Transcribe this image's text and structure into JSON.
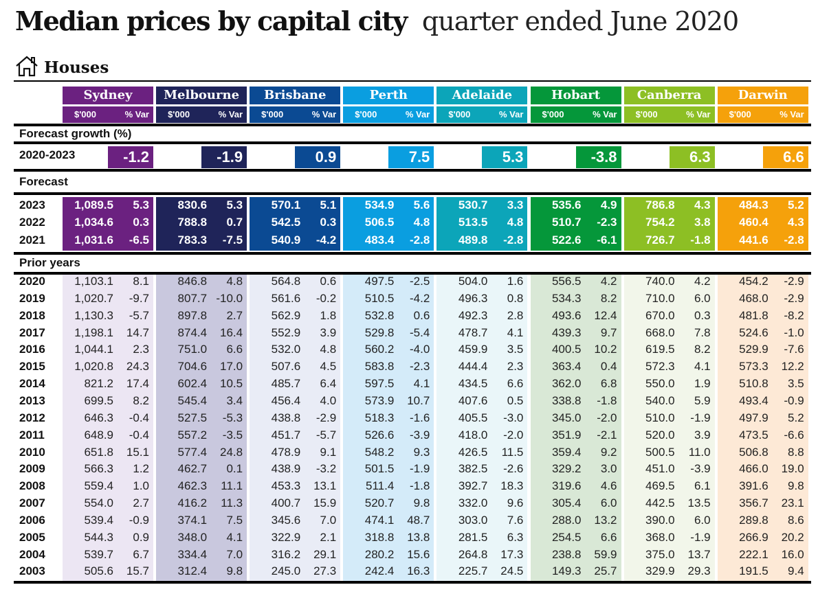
{
  "title": "Median prices by capital city",
  "subtitle": "quarter ended June 2020",
  "section": "Houses",
  "icons": {
    "section_icon": "house-icon"
  },
  "column_labels": {
    "price": "$'000",
    "var": "% Var"
  },
  "cities": [
    {
      "name": "Sydney",
      "color": "#6b2180",
      "tint": "#ece6f3"
    },
    {
      "name": "Melbourne",
      "color": "#1f2459",
      "tint": "#c9c8de"
    },
    {
      "name": "Brisbane",
      "color": "#0b4a93",
      "tint": "#e9ecf6"
    },
    {
      "name": "Perth",
      "color": "#0a9ee0",
      "tint": "#d4ebf9"
    },
    {
      "name": "Adelaide",
      "color": "#0ca5b9",
      "tint": "#eaf6f9"
    },
    {
      "name": "Hobart",
      "color": "#05973a",
      "tint": "#d9e8d6"
    },
    {
      "name": "Canberra",
      "color": "#8dbf24",
      "tint": "#f2f6ea"
    },
    {
      "name": "Darwin",
      "color": "#f5a10b",
      "tint": "#fde9d6"
    }
  ],
  "forecast_growth": {
    "label": "Forecast growth (%)",
    "period": "2020-2023",
    "values": [
      "-1.2",
      "-1.9",
      "0.9",
      "7.5",
      "5.3",
      "-3.8",
      "6.3",
      "6.6"
    ]
  },
  "forecast": {
    "label": "Forecast",
    "rows": [
      {
        "year": "2023",
        "values": [
          [
            "1,089.5",
            "5.3"
          ],
          [
            "830.6",
            "5.3"
          ],
          [
            "570.1",
            "5.1"
          ],
          [
            "534.9",
            "5.6"
          ],
          [
            "530.7",
            "3.3"
          ],
          [
            "535.6",
            "4.9"
          ],
          [
            "786.8",
            "4.3"
          ],
          [
            "484.3",
            "5.2"
          ]
        ]
      },
      {
        "year": "2022",
        "values": [
          [
            "1,034.6",
            "0.3"
          ],
          [
            "788.8",
            "0.7"
          ],
          [
            "542.5",
            "0.3"
          ],
          [
            "506.5",
            "4.8"
          ],
          [
            "513.5",
            "4.8"
          ],
          [
            "510.7",
            "-2.3"
          ],
          [
            "754.2",
            "3.8"
          ],
          [
            "460.4",
            "4.3"
          ]
        ]
      },
      {
        "year": "2021",
        "values": [
          [
            "1,031.6",
            "-6.5"
          ],
          [
            "783.3",
            "-7.5"
          ],
          [
            "540.9",
            "-4.2"
          ],
          [
            "483.4",
            "-2.8"
          ],
          [
            "489.8",
            "-2.8"
          ],
          [
            "522.6",
            "-6.1"
          ],
          [
            "726.7",
            "-1.8"
          ],
          [
            "441.6",
            "-2.8"
          ]
        ]
      }
    ]
  },
  "prior_years": {
    "label": "Prior years",
    "rows": [
      {
        "year": "2020",
        "values": [
          [
            "1,103.1",
            "8.1"
          ],
          [
            "846.8",
            "4.8"
          ],
          [
            "564.8",
            "0.6"
          ],
          [
            "497.5",
            "-2.5"
          ],
          [
            "504.0",
            "1.6"
          ],
          [
            "556.5",
            "4.2"
          ],
          [
            "740.0",
            "4.2"
          ],
          [
            "454.2",
            "-2.9"
          ]
        ]
      },
      {
        "year": "2019",
        "values": [
          [
            "1,020.7",
            "-9.7"
          ],
          [
            "807.7",
            "-10.0"
          ],
          [
            "561.6",
            "-0.2"
          ],
          [
            "510.5",
            "-4.2"
          ],
          [
            "496.3",
            "0.8"
          ],
          [
            "534.3",
            "8.2"
          ],
          [
            "710.0",
            "6.0"
          ],
          [
            "468.0",
            "-2.9"
          ]
        ]
      },
      {
        "year": "2018",
        "values": [
          [
            "1,130.3",
            "-5.7"
          ],
          [
            "897.8",
            "2.7"
          ],
          [
            "562.9",
            "1.8"
          ],
          [
            "532.8",
            "0.6"
          ],
          [
            "492.3",
            "2.8"
          ],
          [
            "493.6",
            "12.4"
          ],
          [
            "670.0",
            "0.3"
          ],
          [
            "481.8",
            "-8.2"
          ]
        ]
      },
      {
        "year": "2017",
        "values": [
          [
            "1,198.1",
            "14.7"
          ],
          [
            "874.4",
            "16.4"
          ],
          [
            "552.9",
            "3.9"
          ],
          [
            "529.8",
            "-5.4"
          ],
          [
            "478.7",
            "4.1"
          ],
          [
            "439.3",
            "9.7"
          ],
          [
            "668.0",
            "7.8"
          ],
          [
            "524.6",
            "-1.0"
          ]
        ]
      },
      {
        "year": "2016",
        "values": [
          [
            "1,044.1",
            "2.3"
          ],
          [
            "751.0",
            "6.6"
          ],
          [
            "532.0",
            "4.8"
          ],
          [
            "560.2",
            "-4.0"
          ],
          [
            "459.9",
            "3.5"
          ],
          [
            "400.5",
            "10.2"
          ],
          [
            "619.5",
            "8.2"
          ],
          [
            "529.9",
            "-7.6"
          ]
        ]
      },
      {
        "year": "2015",
        "values": [
          [
            "1,020.8",
            "24.3"
          ],
          [
            "704.6",
            "17.0"
          ],
          [
            "507.6",
            "4.5"
          ],
          [
            "583.8",
            "-2.3"
          ],
          [
            "444.4",
            "2.3"
          ],
          [
            "363.4",
            "0.4"
          ],
          [
            "572.3",
            "4.1"
          ],
          [
            "573.3",
            "12.2"
          ]
        ]
      },
      {
        "year": "2014",
        "values": [
          [
            "821.2",
            "17.4"
          ],
          [
            "602.4",
            "10.5"
          ],
          [
            "485.7",
            "6.4"
          ],
          [
            "597.5",
            "4.1"
          ],
          [
            "434.5",
            "6.6"
          ],
          [
            "362.0",
            "6.8"
          ],
          [
            "550.0",
            "1.9"
          ],
          [
            "510.8",
            "3.5"
          ]
        ]
      },
      {
        "year": "2013",
        "values": [
          [
            "699.5",
            "8.2"
          ],
          [
            "545.4",
            "3.4"
          ],
          [
            "456.4",
            "4.0"
          ],
          [
            "573.9",
            "10.7"
          ],
          [
            "407.6",
            "0.5"
          ],
          [
            "338.8",
            "-1.8"
          ],
          [
            "540.0",
            "5.9"
          ],
          [
            "493.4",
            "-0.9"
          ]
        ]
      },
      {
        "year": "2012",
        "values": [
          [
            "646.3",
            "-0.4"
          ],
          [
            "527.5",
            "-5.3"
          ],
          [
            "438.8",
            "-2.9"
          ],
          [
            "518.3",
            "-1.6"
          ],
          [
            "405.5",
            "-3.0"
          ],
          [
            "345.0",
            "-2.0"
          ],
          [
            "510.0",
            "-1.9"
          ],
          [
            "497.9",
            "5.2"
          ]
        ]
      },
      {
        "year": "2011",
        "values": [
          [
            "648.9",
            "-0.4"
          ],
          [
            "557.2",
            "-3.5"
          ],
          [
            "451.7",
            "-5.7"
          ],
          [
            "526.6",
            "-3.9"
          ],
          [
            "418.0",
            "-2.0"
          ],
          [
            "351.9",
            "-2.1"
          ],
          [
            "520.0",
            "3.9"
          ],
          [
            "473.5",
            "-6.6"
          ]
        ]
      },
      {
        "year": "2010",
        "values": [
          [
            "651.8",
            "15.1"
          ],
          [
            "577.4",
            "24.8"
          ],
          [
            "478.9",
            "9.1"
          ],
          [
            "548.2",
            "9.3"
          ],
          [
            "426.5",
            "11.5"
          ],
          [
            "359.4",
            "9.2"
          ],
          [
            "500.5",
            "11.0"
          ],
          [
            "506.8",
            "8.8"
          ]
        ]
      },
      {
        "year": "2009",
        "values": [
          [
            "566.3",
            "1.2"
          ],
          [
            "462.7",
            "0.1"
          ],
          [
            "438.9",
            "-3.2"
          ],
          [
            "501.5",
            "-1.9"
          ],
          [
            "382.5",
            "-2.6"
          ],
          [
            "329.2",
            "3.0"
          ],
          [
            "451.0",
            "-3.9"
          ],
          [
            "466.0",
            "19.0"
          ]
        ]
      },
      {
        "year": "2008",
        "values": [
          [
            "559.4",
            "1.0"
          ],
          [
            "462.3",
            "11.1"
          ],
          [
            "453.3",
            "13.1"
          ],
          [
            "511.4",
            "-1.8"
          ],
          [
            "392.7",
            "18.3"
          ],
          [
            "319.6",
            "4.6"
          ],
          [
            "469.5",
            "6.1"
          ],
          [
            "391.6",
            "9.8"
          ]
        ]
      },
      {
        "year": "2007",
        "values": [
          [
            "554.0",
            "2.7"
          ],
          [
            "416.2",
            "11.3"
          ],
          [
            "400.7",
            "15.9"
          ],
          [
            "520.7",
            "9.8"
          ],
          [
            "332.0",
            "9.6"
          ],
          [
            "305.4",
            "6.0"
          ],
          [
            "442.5",
            "13.5"
          ],
          [
            "356.7",
            "23.1"
          ]
        ]
      },
      {
        "year": "2006",
        "values": [
          [
            "539.4",
            "-0.9"
          ],
          [
            "374.1",
            "7.5"
          ],
          [
            "345.6",
            "7.0"
          ],
          [
            "474.1",
            "48.7"
          ],
          [
            "303.0",
            "7.6"
          ],
          [
            "288.0",
            "13.2"
          ],
          [
            "390.0",
            "6.0"
          ],
          [
            "289.8",
            "8.6"
          ]
        ]
      },
      {
        "year": "2005",
        "values": [
          [
            "544.3",
            "0.9"
          ],
          [
            "348.0",
            "4.1"
          ],
          [
            "322.9",
            "2.1"
          ],
          [
            "318.8",
            "13.8"
          ],
          [
            "281.5",
            "6.3"
          ],
          [
            "254.5",
            "6.6"
          ],
          [
            "368.0",
            "-1.9"
          ],
          [
            "266.9",
            "20.2"
          ]
        ]
      },
      {
        "year": "2004",
        "values": [
          [
            "539.7",
            "6.7"
          ],
          [
            "334.4",
            "7.0"
          ],
          [
            "316.2",
            "29.1"
          ],
          [
            "280.2",
            "15.6"
          ],
          [
            "264.8",
            "17.3"
          ],
          [
            "238.8",
            "59.9"
          ],
          [
            "375.0",
            "13.7"
          ],
          [
            "222.1",
            "16.0"
          ]
        ]
      },
      {
        "year": "2003",
        "values": [
          [
            "505.6",
            "15.7"
          ],
          [
            "312.4",
            "9.8"
          ],
          [
            "245.0",
            "27.3"
          ],
          [
            "242.4",
            "16.3"
          ],
          [
            "225.7",
            "24.5"
          ],
          [
            "149.3",
            "25.7"
          ],
          [
            "329.9",
            "29.3"
          ],
          [
            "191.5",
            "9.4"
          ]
        ]
      }
    ]
  }
}
